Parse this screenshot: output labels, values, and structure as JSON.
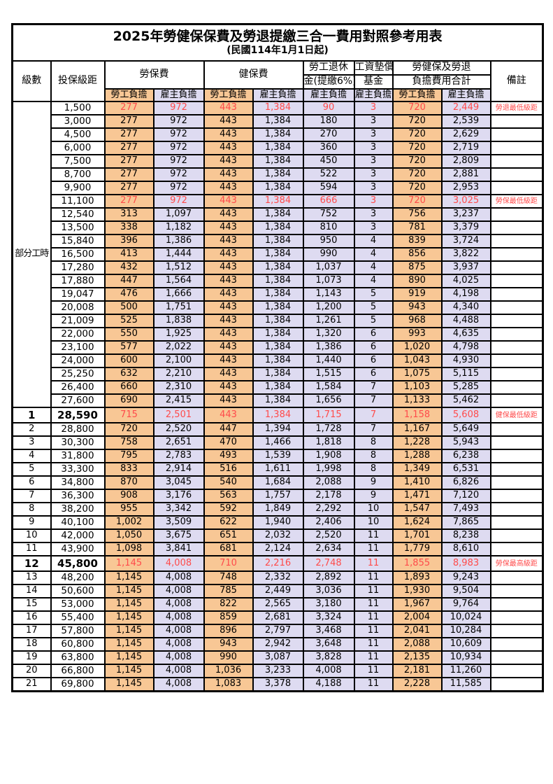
{
  "title": "2025年勞健保保費及勞退提繳三合一費用對照參考用表",
  "subtitle": "(民國114年1月1日起)",
  "header": {
    "level": "級數",
    "bracket": "投保級距",
    "labor_insurance": "勞保費",
    "health_insurance": "健保費",
    "pension_line1": "勞工退休",
    "pension_line2": "金(提繳6%)",
    "wage_fund_line1": "工資墊償",
    "wage_fund_line2": "基金",
    "total_line1": "勞健保及勞退",
    "total_line2": "負擔費用合計",
    "remark": "備註",
    "employee_share": "勞工負擔",
    "employer_share": "雇主負擔"
  },
  "colors": {
    "employee_col_bg": "#F8C795",
    "employer_col_bg": "#DEDBF1",
    "highlight_text": "#FF4B4B",
    "border": "#000000"
  },
  "table": {
    "part_time_label": "部分工時",
    "columns": [
      "level",
      "bracket",
      "labor_emp",
      "labor_er",
      "health_emp",
      "health_er",
      "pension_er",
      "wagefund_er",
      "total_emp",
      "total_er",
      "remark",
      "flags"
    ],
    "rows": [
      [
        "",
        "1,500",
        "277",
        "972",
        "443",
        "1,384",
        "90",
        "3",
        "720",
        "2,449",
        "勞退最低級距",
        "r"
      ],
      [
        "",
        "3,000",
        "277",
        "972",
        "443",
        "1,384",
        "180",
        "3",
        "720",
        "2,539",
        "",
        ""
      ],
      [
        "",
        "4,500",
        "277",
        "972",
        "443",
        "1,384",
        "270",
        "3",
        "720",
        "2,629",
        "",
        ""
      ],
      [
        "",
        "6,000",
        "277",
        "972",
        "443",
        "1,384",
        "360",
        "3",
        "720",
        "2,719",
        "",
        ""
      ],
      [
        "",
        "7,500",
        "277",
        "972",
        "443",
        "1,384",
        "450",
        "3",
        "720",
        "2,809",
        "",
        ""
      ],
      [
        "",
        "8,700",
        "277",
        "972",
        "443",
        "1,384",
        "522",
        "3",
        "720",
        "2,881",
        "",
        ""
      ],
      [
        "",
        "9,900",
        "277",
        "972",
        "443",
        "1,384",
        "594",
        "3",
        "720",
        "2,953",
        "",
        ""
      ],
      [
        "",
        "11,100",
        "277",
        "972",
        "443",
        "1,384",
        "666",
        "3",
        "720",
        "3,025",
        "勞保最低級距",
        "r"
      ],
      [
        "",
        "12,540",
        "313",
        "1,097",
        "443",
        "1,384",
        "752",
        "3",
        "756",
        "3,237",
        "",
        ""
      ],
      [
        "",
        "13,500",
        "338",
        "1,182",
        "443",
        "1,384",
        "810",
        "3",
        "781",
        "3,379",
        "",
        ""
      ],
      [
        "",
        "15,840",
        "396",
        "1,386",
        "443",
        "1,384",
        "950",
        "4",
        "839",
        "3,724",
        "",
        ""
      ],
      [
        "",
        "16,500",
        "413",
        "1,444",
        "443",
        "1,384",
        "990",
        "4",
        "856",
        "3,822",
        "",
        ""
      ],
      [
        "",
        "17,280",
        "432",
        "1,512",
        "443",
        "1,384",
        "1,037",
        "4",
        "875",
        "3,937",
        "",
        ""
      ],
      [
        "",
        "17,880",
        "447",
        "1,564",
        "443",
        "1,384",
        "1,073",
        "4",
        "890",
        "4,025",
        "",
        ""
      ],
      [
        "",
        "19,047",
        "476",
        "1,666",
        "443",
        "1,384",
        "1,143",
        "5",
        "919",
        "4,198",
        "",
        ""
      ],
      [
        "",
        "20,008",
        "500",
        "1,751",
        "443",
        "1,384",
        "1,200",
        "5",
        "943",
        "4,340",
        "",
        ""
      ],
      [
        "",
        "21,009",
        "525",
        "1,838",
        "443",
        "1,384",
        "1,261",
        "5",
        "968",
        "4,488",
        "",
        ""
      ],
      [
        "",
        "22,000",
        "550",
        "1,925",
        "443",
        "1,384",
        "1,320",
        "6",
        "993",
        "4,635",
        "",
        ""
      ],
      [
        "",
        "23,100",
        "577",
        "2,022",
        "443",
        "1,384",
        "1,386",
        "6",
        "1,020",
        "4,798",
        "",
        ""
      ],
      [
        "",
        "24,000",
        "600",
        "2,100",
        "443",
        "1,384",
        "1,440",
        "6",
        "1,043",
        "4,930",
        "",
        ""
      ],
      [
        "",
        "25,250",
        "632",
        "2,210",
        "443",
        "1,384",
        "1,515",
        "6",
        "1,075",
        "5,115",
        "",
        ""
      ],
      [
        "",
        "26,400",
        "660",
        "2,310",
        "443",
        "1,384",
        "1,584",
        "7",
        "1,103",
        "5,285",
        "",
        ""
      ],
      [
        "",
        "27,600",
        "690",
        "2,415",
        "443",
        "1,384",
        "1,656",
        "7",
        "1,133",
        "5,462",
        "",
        ""
      ],
      [
        "1",
        "28,590",
        "715",
        "2,501",
        "443",
        "1,384",
        "1,715",
        "7",
        "1,158",
        "5,608",
        "健保最低級距",
        "re"
      ],
      [
        "2",
        "28,800",
        "720",
        "2,520",
        "447",
        "1,394",
        "1,728",
        "7",
        "1,167",
        "5,649",
        "",
        ""
      ],
      [
        "3",
        "30,300",
        "758",
        "2,651",
        "470",
        "1,466",
        "1,818",
        "8",
        "1,228",
        "5,943",
        "",
        ""
      ],
      [
        "4",
        "31,800",
        "795",
        "2,783",
        "493",
        "1,539",
        "1,908",
        "8",
        "1,288",
        "6,238",
        "",
        ""
      ],
      [
        "5",
        "33,300",
        "833",
        "2,914",
        "516",
        "1,611",
        "1,998",
        "8",
        "1,349",
        "6,531",
        "",
        ""
      ],
      [
        "6",
        "34,800",
        "870",
        "3,045",
        "540",
        "1,684",
        "2,088",
        "9",
        "1,410",
        "6,826",
        "",
        ""
      ],
      [
        "7",
        "36,300",
        "908",
        "3,176",
        "563",
        "1,757",
        "2,178",
        "9",
        "1,471",
        "7,120",
        "",
        ""
      ],
      [
        "8",
        "38,200",
        "955",
        "3,342",
        "592",
        "1,849",
        "2,292",
        "10",
        "1,547",
        "7,493",
        "",
        ""
      ],
      [
        "9",
        "40,100",
        "1,002",
        "3,509",
        "622",
        "1,940",
        "2,406",
        "10",
        "1,624",
        "7,865",
        "",
        ""
      ],
      [
        "10",
        "42,000",
        "1,050",
        "3,675",
        "651",
        "2,032",
        "2,520",
        "11",
        "1,701",
        "8,238",
        "",
        ""
      ],
      [
        "11",
        "43,900",
        "1,098",
        "3,841",
        "681",
        "2,124",
        "2,634",
        "11",
        "1,779",
        "8,610",
        "",
        ""
      ],
      [
        "12",
        "45,800",
        "1,145",
        "4,008",
        "710",
        "2,216",
        "2,748",
        "11",
        "1,855",
        "8,983",
        "勞保最高級距",
        "re"
      ],
      [
        "13",
        "48,200",
        "1,145",
        "4,008",
        "748",
        "2,332",
        "2,892",
        "11",
        "1,893",
        "9,243",
        "",
        ""
      ],
      [
        "14",
        "50,600",
        "1,145",
        "4,008",
        "785",
        "2,449",
        "3,036",
        "11",
        "1,930",
        "9,504",
        "",
        ""
      ],
      [
        "15",
        "53,000",
        "1,145",
        "4,008",
        "822",
        "2,565",
        "3,180",
        "11",
        "1,967",
        "9,764",
        "",
        ""
      ],
      [
        "16",
        "55,400",
        "1,145",
        "4,008",
        "859",
        "2,681",
        "3,324",
        "11",
        "2,004",
        "10,024",
        "",
        ""
      ],
      [
        "17",
        "57,800",
        "1,145",
        "4,008",
        "896",
        "2,797",
        "3,468",
        "11",
        "2,041",
        "10,284",
        "",
        ""
      ],
      [
        "18",
        "60,800",
        "1,145",
        "4,008",
        "943",
        "2,942",
        "3,648",
        "11",
        "2,088",
        "10,609",
        "",
        ""
      ],
      [
        "19",
        "63,800",
        "1,145",
        "4,008",
        "990",
        "3,087",
        "3,828",
        "11",
        "2,135",
        "10,934",
        "",
        ""
      ],
      [
        "20",
        "66,800",
        "1,145",
        "4,008",
        "1,036",
        "3,233",
        "4,008",
        "11",
        "2,181",
        "11,260",
        "",
        ""
      ],
      [
        "21",
        "69,800",
        "1,145",
        "4,008",
        "1,083",
        "3,378",
        "4,188",
        "11",
        "2,228",
        "11,585",
        "",
        ""
      ]
    ]
  }
}
